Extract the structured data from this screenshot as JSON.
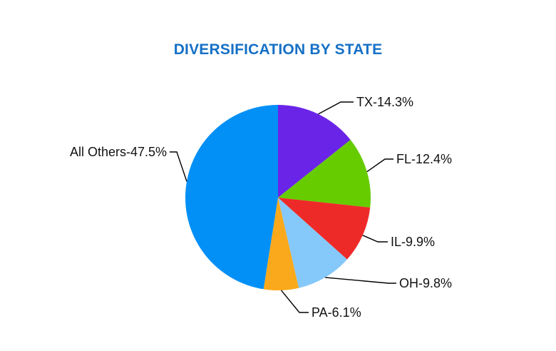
{
  "chart_data": {
    "type": "pie",
    "title": "DIVERSIFICATION BY STATE",
    "title_color": "#1570C6",
    "legend": "none",
    "unit": "%",
    "slices": [
      {
        "name": "TX",
        "value": 14.3,
        "label": "TX-14.3%",
        "color": "#6A24E8"
      },
      {
        "name": "FL",
        "value": 12.4,
        "label": "FL-12.4%",
        "color": "#66CC00"
      },
      {
        "name": "IL",
        "value": 9.9,
        "label": "IL-9.9%",
        "color": "#EE2A28"
      },
      {
        "name": "OH",
        "value": 9.8,
        "label": "OH-9.8%",
        "color": "#85C8FA"
      },
      {
        "name": "PA",
        "value": 6.1,
        "label": "PA-6.1%",
        "color": "#F9A91B"
      },
      {
        "name": "All Others",
        "value": 47.5,
        "label": "All Others-47.5%",
        "color": "#0390F6"
      }
    ]
  }
}
